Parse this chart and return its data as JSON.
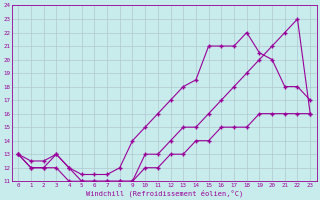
{
  "xlabel": "Windchill (Refroidissement éolien,°C)",
  "bg_color": "#c8ecec",
  "line_color": "#990099",
  "grid_color": "#b0c8d0",
  "xlim": [
    -0.5,
    23.5
  ],
  "ylim": [
    11,
    24
  ],
  "xticks": [
    0,
    1,
    2,
    3,
    4,
    5,
    6,
    7,
    8,
    9,
    10,
    11,
    12,
    13,
    14,
    15,
    16,
    17,
    18,
    19,
    20,
    21,
    22,
    23
  ],
  "yticks": [
    11,
    12,
    13,
    14,
    15,
    16,
    17,
    18,
    19,
    20,
    21,
    22,
    23,
    24
  ],
  "line1_x": [
    0,
    1,
    2,
    3,
    4,
    5,
    6,
    7,
    8,
    9,
    10,
    11,
    12,
    13,
    14,
    15,
    16,
    17,
    18,
    19,
    20,
    21,
    22,
    23
  ],
  "line1_y": [
    13,
    12,
    12,
    12,
    11,
    11,
    11,
    11,
    11,
    11,
    12,
    12,
    13,
    13,
    14,
    14,
    15,
    15,
    15,
    16,
    16,
    16,
    16,
    16
  ],
  "line2_x": [
    0,
    1,
    2,
    3,
    4,
    5,
    6,
    7,
    8,
    9,
    10,
    11,
    12,
    13,
    14,
    15,
    16,
    17,
    18,
    19,
    20,
    21,
    22,
    23
  ],
  "line2_y": [
    13,
    12.5,
    12.5,
    13,
    12,
    11.5,
    11.5,
    11.5,
    12,
    14,
    15,
    16,
    17,
    18,
    18.5,
    21,
    21,
    21,
    22,
    20.5,
    20,
    18,
    18,
    17
  ],
  "line3_x": [
    0,
    1,
    2,
    3,
    4,
    5,
    6,
    7,
    8,
    9,
    10,
    11,
    12,
    13,
    14,
    15,
    16,
    17,
    18,
    19,
    20,
    21,
    22,
    23
  ],
  "line3_y": [
    13,
    12,
    12,
    13,
    12,
    11,
    11,
    11,
    11,
    11,
    13,
    13,
    14,
    15,
    15,
    16,
    17,
    18,
    19,
    20,
    21,
    22,
    23,
    16
  ]
}
